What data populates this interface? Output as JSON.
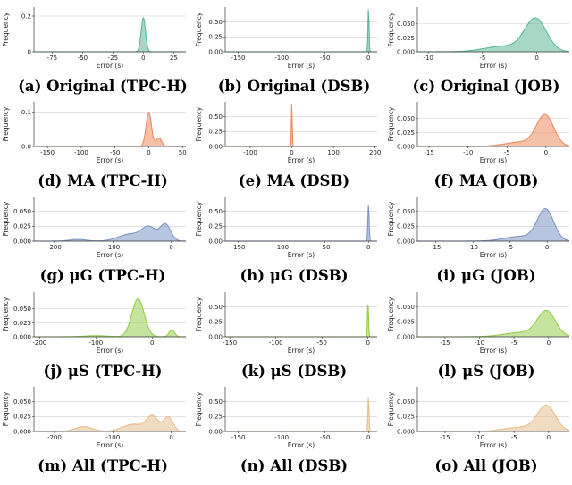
{
  "panels": [
    {
      "caption": "(a) Original (TPC-H)",
      "color": "#5cb896",
      "xlabel": "Error (s)",
      "ylabel": "Frequency",
      "xlim": [
        -90,
        35
      ],
      "xticks": [
        -75,
        -50,
        -25,
        0,
        25
      ],
      "ylim": [
        0,
        0.25
      ],
      "yticks": [
        {
          "v": 0,
          "t": "0"
        },
        {
          "v": 0.2,
          "t": "0.2"
        }
      ],
      "comps": [
        {
          "m": 0,
          "s": 1.8,
          "w": 0.19
        }
      ]
    },
    {
      "caption": "(b) Original (DSB)",
      "color": "#5cb896",
      "xlabel": "Error (s)",
      "ylabel": "Frequency",
      "xlim": [
        -165,
        10
      ],
      "xticks": [
        -150,
        -100,
        -50,
        0
      ],
      "ylim": [
        0,
        0.75
      ],
      "yticks": [
        {
          "v": 0,
          "t": "0.00"
        },
        {
          "v": 0.25,
          "t": "0.25"
        },
        {
          "v": 0.5,
          "t": "0.50"
        }
      ],
      "comps": [
        {
          "m": 0,
          "s": 0.6,
          "w": 0.75
        }
      ]
    },
    {
      "caption": "(c) Original (JOB)",
      "color": "#5cb896",
      "xlabel": "Error (s)",
      "ylabel": "Frequency",
      "xlim": [
        -11,
        3
      ],
      "xticks": [
        -10,
        -5,
        0
      ],
      "ylim": [
        0,
        0.08
      ],
      "yticks": [
        {
          "v": 0,
          "t": "0.000"
        },
        {
          "v": 0.025,
          "t": "0.025"
        },
        {
          "v": 0.05,
          "t": "0.050"
        }
      ],
      "comps": [
        {
          "m": -0.1,
          "s": 1.0,
          "w": 0.058
        },
        {
          "m": -3,
          "s": 1.8,
          "w": 0.01
        }
      ]
    },
    {
      "caption": "(d) MA (TPC-H)",
      "color": "#ef8a5e",
      "xlabel": "Error (s)",
      "ylabel": "Frequency",
      "xlim": [
        -170,
        55
      ],
      "xticks": [
        -150,
        -100,
        -50,
        0,
        50
      ],
      "ylim": [
        0,
        0.13
      ],
      "yticks": [
        {
          "v": 0,
          "t": "0.0"
        },
        {
          "v": 0.1,
          "t": "0.1"
        }
      ],
      "comps": [
        {
          "m": 0,
          "s": 4,
          "w": 0.1
        },
        {
          "m": 15,
          "s": 4,
          "w": 0.025
        }
      ]
    },
    {
      "caption": "(e) MA (DSB)",
      "color": "#ef8a5e",
      "xlabel": "Error (s)",
      "ylabel": "Frequency",
      "xlim": [
        -160,
        205
      ],
      "xticks": [
        -100,
        0,
        100,
        200
      ],
      "ylim": [
        0,
        0.75
      ],
      "yticks": [
        {
          "v": 0,
          "t": "0.00"
        },
        {
          "v": 0.25,
          "t": "0.25"
        },
        {
          "v": 0.5,
          "t": "0.50"
        }
      ],
      "comps": [
        {
          "m": 0,
          "s": 1.0,
          "w": 0.75
        }
      ]
    },
    {
      "caption": "(f) MA (JOB)",
      "color": "#ef8a5e",
      "xlabel": "Error (s)",
      "ylabel": "Frequency",
      "xlim": [
        -16.5,
        3
      ],
      "xticks": [
        -15,
        -10,
        -5,
        0
      ],
      "ylim": [
        0,
        0.08
      ],
      "yticks": [
        {
          "v": 0,
          "t": "0.000"
        },
        {
          "v": 0.025,
          "t": "0.025"
        },
        {
          "v": 0.05,
          "t": "0.050"
        }
      ],
      "comps": [
        {
          "m": -0.1,
          "s": 1.1,
          "w": 0.054
        },
        {
          "m": -3,
          "s": 2.2,
          "w": 0.008
        }
      ]
    },
    {
      "caption": "(g) μG (TPC-H)",
      "color": "#7f97c5",
      "xlabel": "Error (s)",
      "ylabel": "Frequency",
      "xlim": [
        -235,
        25
      ],
      "xticks": [
        -200,
        -100,
        0
      ],
      "ylim": [
        0,
        0.075
      ],
      "yticks": [
        {
          "v": 0,
          "t": "0.000"
        },
        {
          "v": 0.025,
          "t": "0.025"
        },
        {
          "v": 0.05,
          "t": "0.050"
        }
      ],
      "comps": [
        {
          "m": -10,
          "s": 9,
          "w": 0.028
        },
        {
          "m": -38,
          "s": 12,
          "w": 0.022
        },
        {
          "m": -70,
          "s": 20,
          "w": 0.012
        },
        {
          "m": -160,
          "s": 14,
          "w": 0.003
        }
      ]
    },
    {
      "caption": "(h) μG (DSB)",
      "color": "#7f97c5",
      "xlabel": "Error (s)",
      "ylabel": "Frequency",
      "xlim": [
        -165,
        10
      ],
      "xticks": [
        -150,
        -100,
        -50,
        0
      ],
      "ylim": [
        0,
        0.75
      ],
      "yticks": [
        {
          "v": 0,
          "t": "0.00"
        },
        {
          "v": 0.25,
          "t": "0.25"
        },
        {
          "v": 0.5,
          "t": "0.50"
        }
      ],
      "comps": [
        {
          "m": 0,
          "s": 0.7,
          "w": 0.63
        }
      ]
    },
    {
      "caption": "(i) μG (JOB)",
      "color": "#7f97c5",
      "xlabel": "Error (s)",
      "ylabel": "Frequency",
      "xlim": [
        -17.5,
        3
      ],
      "xticks": [
        -15,
        -10,
        -5,
        0
      ],
      "ylim": [
        0,
        0.075
      ],
      "yticks": [
        {
          "v": 0,
          "t": "0.000"
        },
        {
          "v": 0.025,
          "t": "0.025"
        },
        {
          "v": 0.05,
          "t": "0.050"
        }
      ],
      "comps": [
        {
          "m": -0.2,
          "s": 1.1,
          "w": 0.052
        },
        {
          "m": -3.5,
          "s": 2.2,
          "w": 0.008
        }
      ]
    },
    {
      "caption": "(j) μS (TPC-H)",
      "color": "#95cd4f",
      "xlabel": "Error (s)",
      "ylabel": "Frequency",
      "xlim": [
        -210,
        60
      ],
      "xticks": [
        -200,
        -100,
        0
      ],
      "ylim": [
        0,
        0.08
      ],
      "yticks": [
        {
          "v": 0,
          "t": "0.000"
        },
        {
          "v": 0.025,
          "t": "0.025"
        },
        {
          "v": 0.05,
          "t": "0.050"
        }
      ],
      "comps": [
        {
          "m": -25,
          "s": 11,
          "w": 0.068
        },
        {
          "m": 35,
          "s": 5,
          "w": 0.012
        },
        {
          "m": -100,
          "s": 20,
          "w": 0.002
        }
      ]
    },
    {
      "caption": "(k) μS (DSB)",
      "color": "#95cd4f",
      "xlabel": "Error (s)",
      "ylabel": "Frequency",
      "xlim": [
        -155,
        10
      ],
      "xticks": [
        -150,
        -100,
        -50,
        0
      ],
      "ylim": [
        0,
        0.75
      ],
      "yticks": [
        {
          "v": 0,
          "t": "0.00"
        },
        {
          "v": 0.25,
          "t": "0.25"
        },
        {
          "v": 0.5,
          "t": "0.50"
        }
      ],
      "comps": [
        {
          "m": 0,
          "s": 0.6,
          "w": 0.6
        }
      ]
    },
    {
      "caption": "(l) μS (JOB)",
      "color": "#95cd4f",
      "xlabel": "Error (s)",
      "ylabel": "Frequency",
      "xlim": [
        -19,
        3
      ],
      "xticks": [
        -15,
        -10,
        -5,
        0
      ],
      "ylim": [
        0,
        0.075
      ],
      "yticks": [
        {
          "v": 0,
          "t": "0.000"
        },
        {
          "v": 0.025,
          "t": "0.025"
        },
        {
          "v": 0.05,
          "t": "0.050"
        }
      ],
      "comps": [
        {
          "m": -0.3,
          "s": 1.3,
          "w": 0.042
        },
        {
          "m": -4,
          "s": 2.5,
          "w": 0.007
        }
      ]
    },
    {
      "caption": "(m) All (TPC-H)",
      "color": "#e5c08f",
      "xlabel": "Error (s)",
      "ylabel": "Frequency",
      "xlim": [
        -235,
        25
      ],
      "xticks": [
        -200,
        -100,
        0
      ],
      "ylim": [
        0,
        0.075
      ],
      "yticks": [
        {
          "v": 0,
          "t": "0.000"
        },
        {
          "v": 0.025,
          "t": "0.025"
        },
        {
          "v": 0.05,
          "t": "0.050"
        }
      ],
      "comps": [
        {
          "m": -5,
          "s": 8,
          "w": 0.024
        },
        {
          "m": -32,
          "s": 10,
          "w": 0.025
        },
        {
          "m": -65,
          "s": 18,
          "w": 0.012
        },
        {
          "m": -150,
          "s": 15,
          "w": 0.008
        }
      ]
    },
    {
      "caption": "(n) All (DSB)",
      "color": "#e5c08f",
      "xlabel": "Error (s)",
      "ylabel": "Frequency",
      "xlim": [
        -165,
        10
      ],
      "xticks": [
        -150,
        -100,
        -50,
        0
      ],
      "ylim": [
        0,
        0.75
      ],
      "yticks": [
        {
          "v": 0,
          "t": "0.00"
        },
        {
          "v": 0.25,
          "t": "0.25"
        },
        {
          "v": 0.5,
          "t": "0.50"
        }
      ],
      "comps": [
        {
          "m": 0,
          "s": 0.6,
          "w": 0.6
        }
      ]
    },
    {
      "caption": "(o) All (JOB)",
      "color": "#e5c08f",
      "xlabel": "Error (s)",
      "ylabel": "Frequency",
      "xlim": [
        -19,
        3
      ],
      "xticks": [
        -15,
        -10,
        -5,
        0
      ],
      "ylim": [
        0,
        0.075
      ],
      "yticks": [
        {
          "v": 0,
          "t": "0.000"
        },
        {
          "v": 0.025,
          "t": "0.025"
        },
        {
          "v": 0.05,
          "t": "0.050"
        }
      ],
      "comps": [
        {
          "m": -0.3,
          "s": 1.3,
          "w": 0.042
        },
        {
          "m": -4,
          "s": 2.5,
          "w": 0.007
        }
      ]
    }
  ],
  "chart_data": {
    "type": "area",
    "description_of_values": "kernel density of prediction error per panel, approximated as sums of gaussian components (mean m, std s, peak w)",
    "grid": "horizontal",
    "panel_count": 15
  }
}
